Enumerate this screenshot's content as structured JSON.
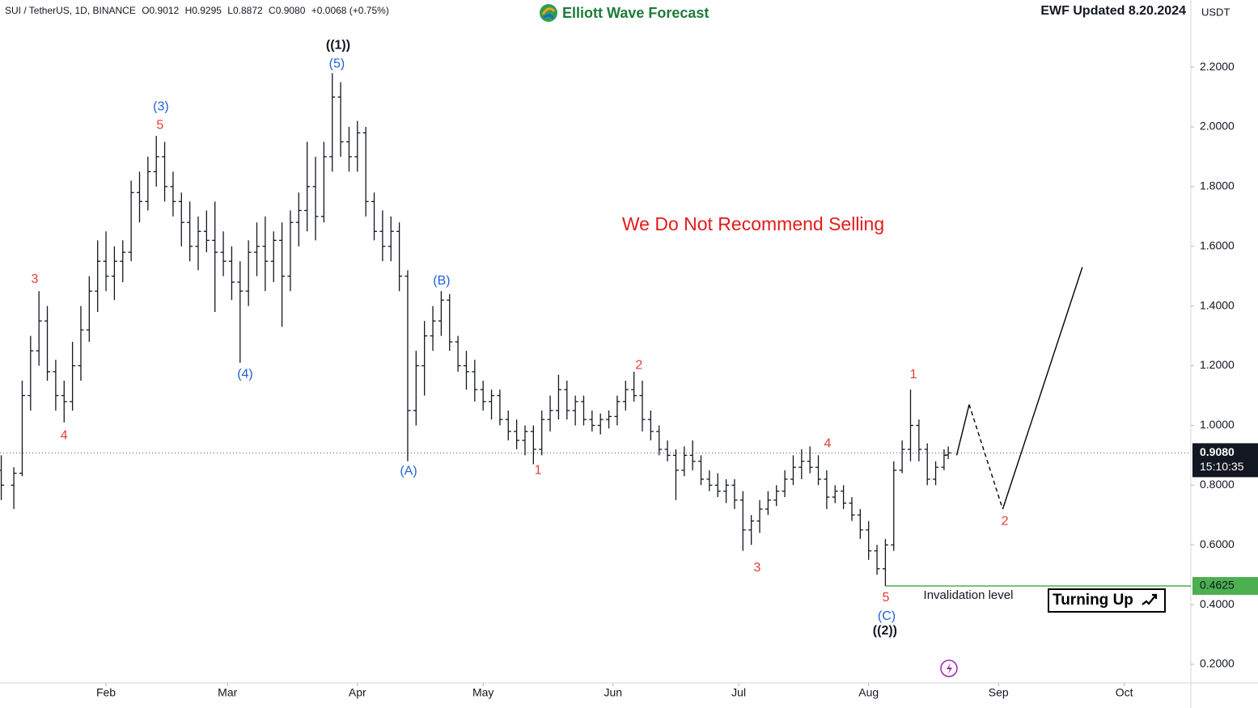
{
  "chart_data": {
    "type": "ohlc",
    "header": {
      "symbol": "SUI / TetherUS, 1D, BINANCE",
      "open": "O0.9012",
      "high": "H0.9295",
      "low": "L0.8872",
      "close": "C0.9080",
      "change": "+0.0068 (+0.75%)"
    },
    "brand": "Elliott Wave Forecast",
    "updated": "EWF Updated 8.20.2024",
    "currency": "USDT",
    "note": "We Do Not Recommend Selling",
    "invalidation_text": "Invalidation level",
    "outlook": "Turning Up",
    "color": "#131722",
    "xlim": [
      5.7,
      289.9
    ],
    "ylim": [
      0.1376,
      2.425
    ],
    "yticks": [
      {
        "value": 0.2,
        "label": "0.2000"
      },
      {
        "value": 0.4,
        "label": "0.4000"
      },
      {
        "value": 0.6,
        "label": "0.6000"
      },
      {
        "value": 0.8,
        "label": "0.8000"
      },
      {
        "value": 1.0,
        "label": "1.0000"
      },
      {
        "value": 1.2,
        "label": "1.2000"
      },
      {
        "value": 1.4,
        "label": "1.4000"
      },
      {
        "value": 1.6,
        "label": "1.6000"
      },
      {
        "value": 1.8,
        "label": "1.8000"
      },
      {
        "value": 2.0,
        "label": "2.0000"
      },
      {
        "value": 2.2,
        "label": "2.2000"
      }
    ],
    "xticks": [
      {
        "value": 31,
        "label": "Feb"
      },
      {
        "value": 60,
        "label": "Mar"
      },
      {
        "value": 91,
        "label": "Apr"
      },
      {
        "value": 121,
        "label": "May"
      },
      {
        "value": 152,
        "label": "Jun"
      },
      {
        "value": 182,
        "label": "Jul"
      },
      {
        "value": 213,
        "label": "Aug"
      },
      {
        "value": 244,
        "label": "Sep"
      },
      {
        "value": 274,
        "label": "Oct"
      }
    ],
    "last_price": {
      "value": 0.908,
      "label": "0.9080"
    },
    "countdown": "15:10:35",
    "invalidation": {
      "value": 0.4625,
      "from": 217,
      "color": "#4caf50"
    },
    "x": [
      6,
      9,
      11,
      13,
      15,
      17,
      19,
      21,
      23,
      25,
      27,
      29,
      31,
      33,
      35,
      37,
      39,
      41,
      43,
      45,
      47,
      49,
      51,
      53,
      55,
      57,
      59,
      61,
      63,
      65,
      67,
      69,
      71,
      73,
      75,
      77,
      79,
      81,
      83,
      85,
      87,
      89,
      91,
      93,
      95,
      97,
      99,
      101,
      103,
      105,
      107,
      109,
      111,
      113,
      115,
      117,
      119,
      121,
      123,
      125,
      127,
      129,
      131,
      133,
      135,
      137,
      139,
      141,
      143,
      145,
      147,
      149,
      151,
      153,
      155,
      157,
      159,
      161,
      163,
      165,
      167,
      169,
      171,
      173,
      175,
      177,
      179,
      181,
      183,
      185,
      187,
      189,
      191,
      193,
      195,
      197,
      199,
      201,
      203,
      205,
      207,
      209,
      211,
      213,
      215,
      217,
      219,
      221,
      223,
      225,
      227,
      229,
      231,
      232
    ],
    "ohlc": [
      [
        0.85,
        0.9,
        0.75,
        0.8
      ],
      [
        0.8,
        0.86,
        0.72,
        0.84
      ],
      [
        0.84,
        1.15,
        0.83,
        1.1
      ],
      [
        1.1,
        1.3,
        1.05,
        1.25
      ],
      [
        1.25,
        1.45,
        1.2,
        1.35
      ],
      [
        1.35,
        1.4,
        1.15,
        1.18
      ],
      [
        1.18,
        1.22,
        1.05,
        1.1
      ],
      [
        1.1,
        1.15,
        1.01,
        1.08
      ],
      [
        1.08,
        1.28,
        1.05,
        1.2
      ],
      [
        1.2,
        1.4,
        1.15,
        1.32
      ],
      [
        1.32,
        1.5,
        1.28,
        1.45
      ],
      [
        1.45,
        1.62,
        1.38,
        1.55
      ],
      [
        1.55,
        1.65,
        1.45,
        1.5
      ],
      [
        1.5,
        1.6,
        1.42,
        1.55
      ],
      [
        1.55,
        1.62,
        1.48,
        1.58
      ],
      [
        1.58,
        1.82,
        1.55,
        1.78
      ],
      [
        1.78,
        1.85,
        1.68,
        1.75
      ],
      [
        1.75,
        1.9,
        1.72,
        1.85
      ],
      [
        1.85,
        1.97,
        1.8,
        1.9
      ],
      [
        1.9,
        1.95,
        1.75,
        1.8
      ],
      [
        1.8,
        1.85,
        1.7,
        1.75
      ],
      [
        1.75,
        1.78,
        1.6,
        1.68
      ],
      [
        1.68,
        1.75,
        1.55,
        1.6
      ],
      [
        1.6,
        1.7,
        1.52,
        1.65
      ],
      [
        1.65,
        1.72,
        1.58,
        1.62
      ],
      [
        1.62,
        1.75,
        1.38,
        1.58
      ],
      [
        1.58,
        1.65,
        1.5,
        1.55
      ],
      [
        1.55,
        1.6,
        1.42,
        1.48
      ],
      [
        1.48,
        1.55,
        1.21,
        1.45
      ],
      [
        1.45,
        1.62,
        1.4,
        1.58
      ],
      [
        1.58,
        1.68,
        1.5,
        1.6
      ],
      [
        1.6,
        1.7,
        1.45,
        1.55
      ],
      [
        1.55,
        1.65,
        1.48,
        1.62
      ],
      [
        1.62,
        1.68,
        1.33,
        1.5
      ],
      [
        1.5,
        1.72,
        1.45,
        1.68
      ],
      [
        1.68,
        1.78,
        1.6,
        1.72
      ],
      [
        1.72,
        1.95,
        1.65,
        1.8
      ],
      [
        1.8,
        1.9,
        1.62,
        1.7
      ],
      [
        1.7,
        1.95,
        1.68,
        1.9
      ],
      [
        1.9,
        2.18,
        1.85,
        2.1
      ],
      [
        2.1,
        2.15,
        1.9,
        1.95
      ],
      [
        1.95,
        2.0,
        1.85,
        1.9
      ],
      [
        1.9,
        2.02,
        1.85,
        1.98
      ],
      [
        1.98,
        2.0,
        1.7,
        1.75
      ],
      [
        1.75,
        1.78,
        1.62,
        1.65
      ],
      [
        1.65,
        1.72,
        1.55,
        1.6
      ],
      [
        1.6,
        1.7,
        1.55,
        1.65
      ],
      [
        1.65,
        1.68,
        1.45,
        1.5
      ],
      [
        1.5,
        1.52,
        0.88,
        1.05
      ],
      [
        1.05,
        1.25,
        1.0,
        1.2
      ],
      [
        1.2,
        1.35,
        1.1,
        1.3
      ],
      [
        1.3,
        1.4,
        1.25,
        1.35
      ],
      [
        1.35,
        1.45,
        1.3,
        1.42
      ],
      [
        1.42,
        1.44,
        1.25,
        1.28
      ],
      [
        1.28,
        1.3,
        1.18,
        1.2
      ],
      [
        1.2,
        1.25,
        1.12,
        1.18
      ],
      [
        1.18,
        1.22,
        1.08,
        1.12
      ],
      [
        1.12,
        1.15,
        1.05,
        1.08
      ],
      [
        1.08,
        1.12,
        1.02,
        1.1
      ],
      [
        1.1,
        1.12,
        1.0,
        1.02
      ],
      [
        1.02,
        1.05,
        0.95,
        0.98
      ],
      [
        0.98,
        1.02,
        0.92,
        0.95
      ],
      [
        0.95,
        1.0,
        0.9,
        0.98
      ],
      [
        0.98,
        1.0,
        0.87,
        0.92
      ],
      [
        0.92,
        1.05,
        0.9,
        1.02
      ],
      [
        1.02,
        1.1,
        0.98,
        1.05
      ],
      [
        1.05,
        1.17,
        1.02,
        1.12
      ],
      [
        1.12,
        1.15,
        1.02,
        1.05
      ],
      [
        1.05,
        1.1,
        1.0,
        1.08
      ],
      [
        1.08,
        1.1,
        1.0,
        1.02
      ],
      [
        1.02,
        1.05,
        0.98,
        1.0
      ],
      [
        1.0,
        1.04,
        0.97,
        1.02
      ],
      [
        1.02,
        1.05,
        0.99,
        1.03
      ],
      [
        1.03,
        1.1,
        1.0,
        1.08
      ],
      [
        1.08,
        1.15,
        1.05,
        1.12
      ],
      [
        1.12,
        1.18,
        1.08,
        1.1
      ],
      [
        1.1,
        1.15,
        0.98,
        1.02
      ],
      [
        1.02,
        1.05,
        0.95,
        0.98
      ],
      [
        0.98,
        1.0,
        0.9,
        0.92
      ],
      [
        0.92,
        0.95,
        0.88,
        0.9
      ],
      [
        0.9,
        0.92,
        0.75,
        0.85
      ],
      [
        0.85,
        0.93,
        0.83,
        0.9
      ],
      [
        0.9,
        0.95,
        0.85,
        0.88
      ],
      [
        0.88,
        0.9,
        0.8,
        0.82
      ],
      [
        0.82,
        0.85,
        0.78,
        0.8
      ],
      [
        0.8,
        0.84,
        0.76,
        0.78
      ],
      [
        0.78,
        0.82,
        0.74,
        0.8
      ],
      [
        0.8,
        0.82,
        0.72,
        0.75
      ],
      [
        0.75,
        0.78,
        0.58,
        0.65
      ],
      [
        0.65,
        0.7,
        0.6,
        0.68
      ],
      [
        0.68,
        0.75,
        0.64,
        0.72
      ],
      [
        0.72,
        0.78,
        0.7,
        0.75
      ],
      [
        0.75,
        0.8,
        0.73,
        0.78
      ],
      [
        0.78,
        0.85,
        0.76,
        0.82
      ],
      [
        0.82,
        0.9,
        0.8,
        0.86
      ],
      [
        0.86,
        0.92,
        0.82,
        0.88
      ],
      [
        0.88,
        0.93,
        0.84,
        0.86
      ],
      [
        0.86,
        0.9,
        0.8,
        0.82
      ],
      [
        0.82,
        0.85,
        0.72,
        0.76
      ],
      [
        0.76,
        0.8,
        0.74,
        0.78
      ],
      [
        0.78,
        0.8,
        0.72,
        0.74
      ],
      [
        0.74,
        0.76,
        0.68,
        0.7
      ],
      [
        0.7,
        0.72,
        0.62,
        0.65
      ],
      [
        0.65,
        0.68,
        0.55,
        0.58
      ],
      [
        0.58,
        0.6,
        0.5,
        0.52
      ],
      [
        0.52,
        0.62,
        0.4625,
        0.6
      ],
      [
        0.6,
        0.88,
        0.58,
        0.85
      ],
      [
        0.85,
        0.95,
        0.84,
        0.92
      ],
      [
        0.92,
        1.12,
        0.88,
        1.0
      ],
      [
        1.0,
        1.02,
        0.88,
        0.92
      ],
      [
        0.92,
        0.94,
        0.8,
        0.82
      ],
      [
        0.82,
        0.88,
        0.8,
        0.86
      ],
      [
        0.86,
        0.92,
        0.85,
        0.9
      ],
      [
        0.9012,
        0.9295,
        0.8872,
        0.908
      ]
    ],
    "projection": {
      "x": [
        234,
        237,
        245,
        264
      ],
      "y": [
        0.9,
        1.07,
        0.72,
        1.53
      ],
      "styles": [
        "solid",
        "dashed",
        "solid"
      ]
    },
    "annotations": [
      {
        "text": "((1))",
        "x": 86.4,
        "y": 2.273,
        "color": "#131722"
      },
      {
        "text": "(5)",
        "x": 86.1,
        "y": 2.21,
        "color": "#1e63d6"
      },
      {
        "text": "(3)",
        "x": 44.1,
        "y": 2.067,
        "color": "#1e63d6"
      },
      {
        "text": "5",
        "x": 43.9,
        "y": 2.005,
        "color": "#e53935"
      },
      {
        "text": "3",
        "x": 14,
        "y": 1.489,
        "color": "#e53935"
      },
      {
        "text": "4",
        "x": 21,
        "y": 0.965,
        "color": "#e53935"
      },
      {
        "text": "(4)",
        "x": 64.2,
        "y": 1.171,
        "color": "#1e63d6"
      },
      {
        "text": "(B)",
        "x": 111.1,
        "y": 1.484,
        "color": "#1e63d6"
      },
      {
        "text": "(A)",
        "x": 103.2,
        "y": 0.846,
        "color": "#1e63d6"
      },
      {
        "text": "1",
        "x": 134.1,
        "y": 0.849,
        "color": "#e53935"
      },
      {
        "text": "2",
        "x": 158.2,
        "y": 1.201,
        "color": "#e53935"
      },
      {
        "text": "3",
        "x": 186.4,
        "y": 0.523,
        "color": "#e53935"
      },
      {
        "text": "4",
        "x": 203.2,
        "y": 0.938,
        "color": "#e53935"
      },
      {
        "text": "5",
        "x": 217.1,
        "y": 0.4225,
        "color": "#e53935"
      },
      {
        "text": "(C)",
        "x": 217.3,
        "y": 0.36,
        "color": "#1e63d6"
      },
      {
        "text": "((2))",
        "x": 216.9,
        "y": 0.311,
        "color": "#131722"
      },
      {
        "text": "1",
        "x": 223.7,
        "y": 1.169,
        "color": "#e53935"
      },
      {
        "text": "2",
        "x": 245.5,
        "y": 0.678,
        "color": "#e53935"
      }
    ]
  }
}
